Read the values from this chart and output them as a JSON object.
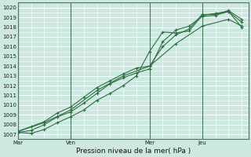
{
  "background_color": "#cce8e0",
  "grid_color": "#ffffff",
  "line_color": "#2d6e3e",
  "marker_color": "#2d6e3e",
  "xlabel": "Pression niveau de la mer( hPa )",
  "ylim": [
    1006.5,
    1020.5
  ],
  "yticks": [
    1007,
    1008,
    1009,
    1010,
    1011,
    1012,
    1013,
    1014,
    1015,
    1016,
    1017,
    1018,
    1019,
    1020
  ],
  "xtick_labels": [
    "Mar",
    "Ven",
    "Mer",
    "Jeu"
  ],
  "xtick_positions": [
    0,
    48,
    120,
    168
  ],
  "vline_positions": [
    0,
    48,
    120,
    168
  ],
  "total_hours": 210,
  "series": [
    {
      "x": [
        0,
        12,
        24,
        36,
        48,
        60,
        72,
        84,
        96,
        108,
        120,
        132,
        144,
        156,
        168,
        180,
        192,
        204
      ],
      "y": [
        1007.2,
        1007.1,
        1007.5,
        1008.2,
        1008.8,
        1009.5,
        1010.5,
        1011.2,
        1012.0,
        1013.0,
        1015.5,
        1017.5,
        1017.4,
        1017.6,
        1019.2,
        1019.4,
        1019.6,
        1018.0
      ]
    },
    {
      "x": [
        0,
        12,
        24,
        36,
        48,
        60,
        72,
        84,
        96,
        108,
        120,
        132,
        144,
        156,
        168,
        180,
        192,
        204
      ],
      "y": [
        1007.2,
        1007.4,
        1008.0,
        1008.8,
        1009.3,
        1010.2,
        1011.2,
        1012.2,
        1012.8,
        1013.3,
        1013.7,
        1016.5,
        1017.7,
        1018.1,
        1019.1,
        1019.2,
        1019.6,
        1018.5
      ]
    },
    {
      "x": [
        0,
        12,
        24,
        36,
        48,
        60,
        72,
        84,
        96,
        108,
        120,
        132,
        144,
        156,
        168,
        180,
        192,
        204
      ],
      "y": [
        1007.3,
        1007.8,
        1008.3,
        1009.2,
        1009.8,
        1010.8,
        1011.8,
        1012.5,
        1013.2,
        1013.8,
        1014.0,
        1016.0,
        1017.2,
        1017.8,
        1019.3,
        1019.3,
        1019.7,
        1018.8
      ]
    },
    {
      "x": [
        0,
        24,
        48,
        72,
        96,
        120,
        144,
        168,
        192,
        204
      ],
      "y": [
        1007.3,
        1008.2,
        1009.5,
        1011.5,
        1013.0,
        1014.0,
        1016.3,
        1018.1,
        1018.8,
        1018.1
      ]
    }
  ]
}
